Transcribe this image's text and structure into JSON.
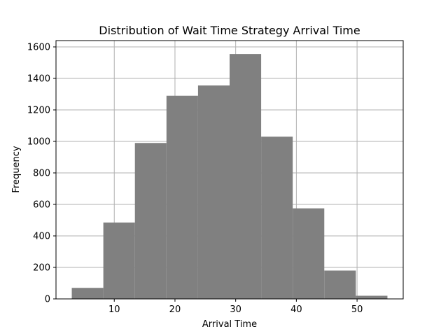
{
  "chart_data": {
    "type": "bar",
    "title": "Distribution of Wait Time Strategy Arrival Time",
    "xlabel": "Arrival Time",
    "ylabel": "Frequency",
    "bin_edges": [
      3.0,
      8.2,
      13.4,
      18.6,
      23.8,
      29.0,
      34.2,
      39.4,
      44.6,
      49.8,
      55.0
    ],
    "values": [
      70,
      485,
      990,
      1290,
      1355,
      1555,
      1030,
      575,
      180,
      20
    ],
    "xlim": [
      0.4,
      57.6
    ],
    "ylim": [
      0,
      1640
    ],
    "xticks": [
      10,
      20,
      30,
      40,
      50
    ],
    "yticks": [
      0,
      200,
      400,
      600,
      800,
      1000,
      1200,
      1400,
      1600
    ],
    "bar_color": "#808080",
    "grid": true,
    "grid_color": "#b0b0b0"
  }
}
